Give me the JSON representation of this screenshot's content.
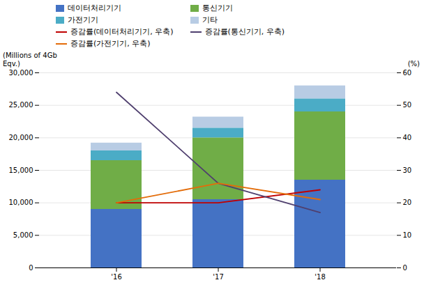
{
  "chart_data": {
    "type": "bar",
    "stacked": true,
    "categories": [
      "'16",
      "'17",
      "'18"
    ],
    "series": [
      {
        "name": "데이터처리기기",
        "type": "bar",
        "color": "#4472C4",
        "values": [
          9000,
          10500,
          13500
        ]
      },
      {
        "name": "통신기기",
        "type": "bar",
        "color": "#70AD47",
        "values": [
          7500,
          9500,
          10500
        ]
      },
      {
        "name": "가전기기",
        "type": "bar",
        "color": "#4BACC6",
        "values": [
          1500,
          1500,
          2000
        ]
      },
      {
        "name": "기타",
        "type": "bar",
        "color": "#B8CCE4",
        "values": [
          1200,
          1700,
          2000
        ]
      },
      {
        "name": "증감률(데이터처리기기, 우축)",
        "type": "line",
        "axis": "y2",
        "color": "#C00000",
        "values": [
          20,
          20,
          24
        ]
      },
      {
        "name": "증감률(통신기기, 우축)",
        "type": "line",
        "axis": "y2",
        "color": "#4F3F6E",
        "values": [
          54,
          26,
          17
        ]
      },
      {
        "name": "증감률(가전기기, 우축)",
        "type": "line",
        "axis": "y2",
        "color": "#E36C09",
        "values": [
          20,
          26,
          21
        ]
      }
    ],
    "ylabel": "(Millions of 4Gb\nEqv.)",
    "y2label": "(%)",
    "ylim": [
      0,
      30000
    ],
    "yticks": [
      0,
      {
        "value": 5000,
        "label": "5,000"
      },
      {
        "value": 10000,
        "label": "10,000"
      },
      {
        "value": 15000,
        "label": "15,000"
      },
      {
        "value": 20000,
        "label": "20,000"
      },
      {
        "value": 25000,
        "label": "25,000"
      },
      {
        "value": 30000,
        "label": "30,000"
      }
    ],
    "y2lim": [
      0,
      60
    ],
    "y2ticks": [
      0,
      10,
      20,
      30,
      40,
      50,
      60
    ],
    "grid": true,
    "legend": "top"
  }
}
